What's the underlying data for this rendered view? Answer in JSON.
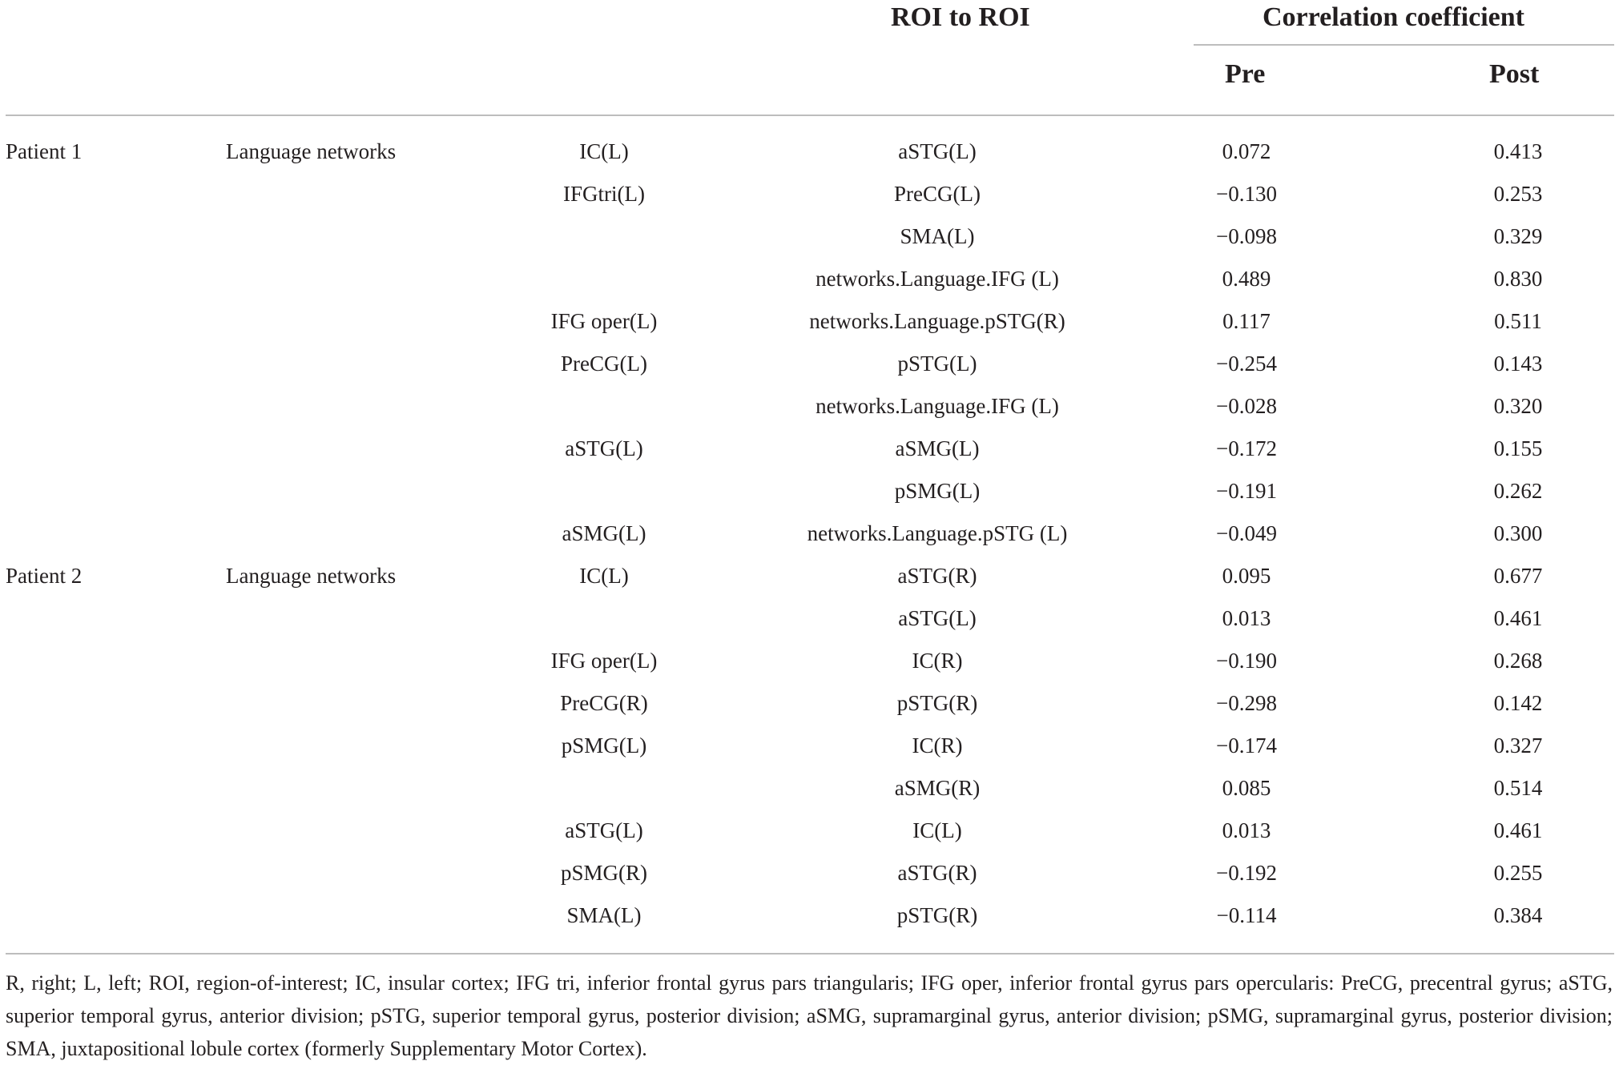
{
  "header": {
    "roi_to_roi": "ROI to ROI",
    "correlation": "Correlation coefficient",
    "pre": "Pre",
    "post": "Post"
  },
  "rows": [
    {
      "patient": "Patient 1",
      "network": "Language networks",
      "roi1": "IC(L)",
      "roi2": "aSTG(L)",
      "pre": "0.072",
      "post": "0.413"
    },
    {
      "patient": "",
      "network": "",
      "roi1": "IFGtri(L)",
      "roi2": "PreCG(L)",
      "pre": "−0.130",
      "post": "0.253"
    },
    {
      "patient": "",
      "network": "",
      "roi1": "",
      "roi2": "SMA(L)",
      "pre": "−0.098",
      "post": "0.329"
    },
    {
      "patient": "",
      "network": "",
      "roi1": "",
      "roi2": "networks.Language.IFG (L)",
      "pre": "0.489",
      "post": "0.830"
    },
    {
      "patient": "",
      "network": "",
      "roi1": "IFG oper(L)",
      "roi2": "networks.Language.pSTG(R)",
      "pre": "0.117",
      "post": "0.511"
    },
    {
      "patient": "",
      "network": "",
      "roi1": "PreCG(L)",
      "roi2": "pSTG(L)",
      "pre": "−0.254",
      "post": "0.143"
    },
    {
      "patient": "",
      "network": "",
      "roi1": "",
      "roi2": "networks.Language.IFG (L)",
      "pre": "−0.028",
      "post": "0.320"
    },
    {
      "patient": "",
      "network": "",
      "roi1": "aSTG(L)",
      "roi2": "aSMG(L)",
      "pre": "−0.172",
      "post": "0.155"
    },
    {
      "patient": "",
      "network": "",
      "roi1": "",
      "roi2": "pSMG(L)",
      "pre": "−0.191",
      "post": "0.262"
    },
    {
      "patient": "",
      "network": "",
      "roi1": "aSMG(L)",
      "roi2": "networks.Language.pSTG (L)",
      "pre": "−0.049",
      "post": "0.300"
    },
    {
      "patient": "Patient 2",
      "network": "Language networks",
      "roi1": "IC(L)",
      "roi2": "aSTG(R)",
      "pre": "0.095",
      "post": "0.677"
    },
    {
      "patient": "",
      "network": "",
      "roi1": "",
      "roi2": "aSTG(L)",
      "pre": "0.013",
      "post": "0.461"
    },
    {
      "patient": "",
      "network": "",
      "roi1": "IFG oper(L)",
      "roi2": "IC(R)",
      "pre": "−0.190",
      "post": "0.268"
    },
    {
      "patient": "",
      "network": "",
      "roi1": "PreCG(R)",
      "roi2": "pSTG(R)",
      "pre": "−0.298",
      "post": "0.142"
    },
    {
      "patient": "",
      "network": "",
      "roi1": "pSMG(L)",
      "roi2": "IC(R)",
      "pre": "−0.174",
      "post": "0.327"
    },
    {
      "patient": "",
      "network": "",
      "roi1": "",
      "roi2": "aSMG(R)",
      "pre": "0.085",
      "post": "0.514"
    },
    {
      "patient": "",
      "network": "",
      "roi1": "aSTG(L)",
      "roi2": "IC(L)",
      "pre": "0.013",
      "post": "0.461"
    },
    {
      "patient": "",
      "network": "",
      "roi1": "pSMG(R)",
      "roi2": "aSTG(R)",
      "pre": "−0.192",
      "post": "0.255"
    },
    {
      "patient": "",
      "network": "",
      "roi1": "SMA(L)",
      "roi2": "pSTG(R)",
      "pre": "−0.114",
      "post": "0.384"
    }
  ],
  "footnote": "R, right; L, left; ROI, region-of-interest; IC, insular cortex; IFG tri, inferior frontal gyrus pars triangularis; IFG oper, inferior frontal gyrus pars opercularis: PreCG, precentral gyrus; aSTG, superior temporal gyrus, anterior division; pSTG, superior temporal gyrus, posterior division; aSMG, supramarginal gyrus, anterior division; pSMG, supramarginal gyrus, posterior division; SMA, juxtapositional lobule cortex (formerly Supplementary Motor Cortex)."
}
